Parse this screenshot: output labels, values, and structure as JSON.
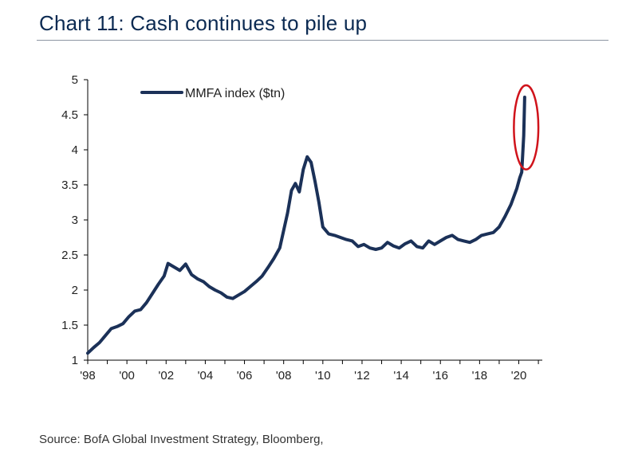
{
  "title": "Chart 11: Cash continues to pile up",
  "source": "Source: BofA Global Investment Strategy, Bloomberg,",
  "colors": {
    "line": "#1b3158",
    "highlight": "#d0131b",
    "title": "#0b2a52",
    "axis": "#000000"
  },
  "chart_data": {
    "type": "line",
    "title": "Chart 11: Cash continues to pile up",
    "xlabel": "",
    "ylabel": "",
    "xlim": [
      1998,
      2021.2
    ],
    "ylim": [
      1,
      5
    ],
    "grid": false,
    "legend": "top-left",
    "x_tick_values": [
      1998,
      2000,
      2002,
      2004,
      2006,
      2008,
      2010,
      2012,
      2014,
      2016,
      2018,
      2020
    ],
    "x_tick_labels": [
      "'98",
      "'00",
      "'02",
      "'04",
      "'06",
      "'08",
      "'10",
      "'12",
      "'14",
      "'16",
      "'18",
      "'20"
    ],
    "y_tick_values": [
      1,
      1.5,
      2,
      2.5,
      3,
      3.5,
      4,
      4.5,
      5
    ],
    "y_tick_labels": [
      "1",
      "1.5",
      "2",
      "2.5",
      "3",
      "3.5",
      "4",
      "4.5",
      "5"
    ],
    "annotations": [
      {
        "type": "ellipse",
        "label": "",
        "x_range": [
          2019.75,
          2021.0
        ],
        "y_range": [
          3.72,
          4.92
        ]
      }
    ],
    "series": [
      {
        "name": "MMFA index ($tn)",
        "x": [
          1998.0,
          1998.3,
          1998.6,
          1998.9,
          1999.2,
          1999.5,
          1999.8,
          2000.1,
          2000.4,
          2000.7,
          2001.0,
          2001.3,
          2001.6,
          2001.9,
          2002.1,
          2002.4,
          2002.7,
          2003.0,
          2003.3,
          2003.6,
          2003.9,
          2004.2,
          2004.5,
          2004.8,
          2005.1,
          2005.4,
          2005.7,
          2006.0,
          2006.3,
          2006.6,
          2006.9,
          2007.2,
          2007.5,
          2007.8,
          2008.0,
          2008.2,
          2008.4,
          2008.6,
          2008.8,
          2009.0,
          2009.2,
          2009.4,
          2009.6,
          2009.8,
          2010.0,
          2010.3,
          2010.6,
          2010.9,
          2011.2,
          2011.5,
          2011.8,
          2012.1,
          2012.4,
          2012.7,
          2013.0,
          2013.3,
          2013.6,
          2013.9,
          2014.2,
          2014.5,
          2014.8,
          2015.1,
          2015.4,
          2015.7,
          2016.0,
          2016.3,
          2016.6,
          2016.9,
          2017.2,
          2017.5,
          2017.8,
          2018.1,
          2018.4,
          2018.7,
          2019.0,
          2019.3,
          2019.6,
          2019.9,
          2020.05,
          2020.15,
          2020.25,
          2020.3
        ],
        "values": [
          1.1,
          1.18,
          1.25,
          1.35,
          1.45,
          1.48,
          1.52,
          1.62,
          1.7,
          1.72,
          1.82,
          1.95,
          2.08,
          2.2,
          2.38,
          2.33,
          2.28,
          2.37,
          2.22,
          2.16,
          2.12,
          2.05,
          2.0,
          1.96,
          1.9,
          1.88,
          1.93,
          1.98,
          2.05,
          2.12,
          2.2,
          2.32,
          2.45,
          2.6,
          2.85,
          3.1,
          3.42,
          3.52,
          3.4,
          3.72,
          3.9,
          3.82,
          3.55,
          3.25,
          2.9,
          2.8,
          2.78,
          2.75,
          2.72,
          2.7,
          2.62,
          2.65,
          2.6,
          2.58,
          2.6,
          2.68,
          2.63,
          2.6,
          2.66,
          2.7,
          2.62,
          2.6,
          2.7,
          2.65,
          2.7,
          2.75,
          2.78,
          2.72,
          2.7,
          2.68,
          2.72,
          2.78,
          2.8,
          2.82,
          2.9,
          3.05,
          3.22,
          3.45,
          3.6,
          3.68,
          4.2,
          4.75
        ]
      }
    ]
  }
}
